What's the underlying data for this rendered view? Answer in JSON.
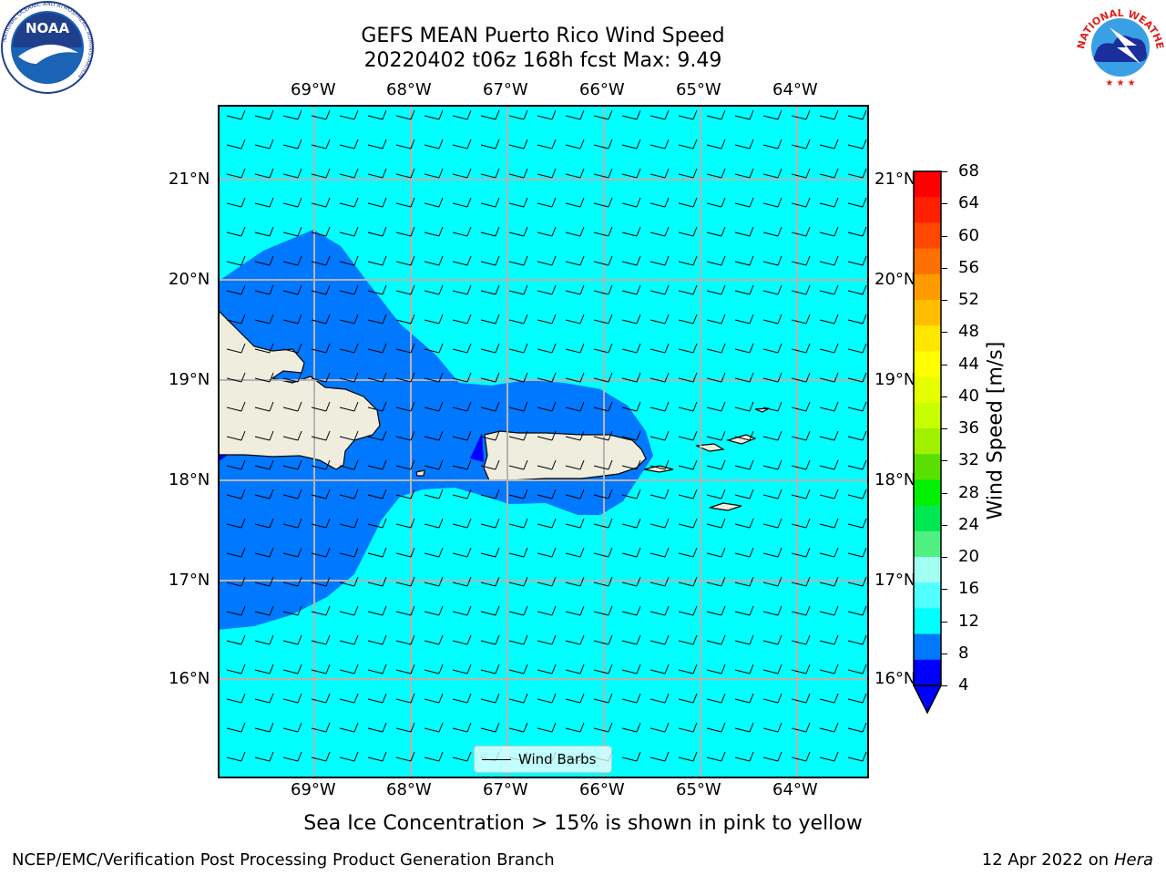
{
  "title": {
    "line1": "GEFS MEAN Puerto Rico Wind Speed",
    "line2": "20220402 t06z 168h fcst   Max: 9.49"
  },
  "map": {
    "lon_range": [
      -70.0,
      -63.25
    ],
    "lat_range": [
      15.0,
      21.75
    ],
    "lon_ticks": [
      {
        "value": -69,
        "label": "69°W"
      },
      {
        "value": -68,
        "label": "68°W"
      },
      {
        "value": -67,
        "label": "67°W"
      },
      {
        "value": -66,
        "label": "66°W"
      },
      {
        "value": -65,
        "label": "65°W"
      },
      {
        "value": -64,
        "label": "64°W"
      }
    ],
    "lat_ticks": [
      {
        "value": 21,
        "label": "21°N"
      },
      {
        "value": 20,
        "label": "20°N"
      },
      {
        "value": 19,
        "label": "19°N"
      },
      {
        "value": 18,
        "label": "18°N"
      },
      {
        "value": 17,
        "label": "17°N"
      },
      {
        "value": 16,
        "label": "16°N"
      }
    ],
    "grid": true,
    "background_color": "#00ffff",
    "land_color": "#efedde",
    "legend_label": "Wind Barbs",
    "wind_barbs": {
      "direction": "east-northeast",
      "speed_class": "5-10 kt"
    }
  },
  "colorbar": {
    "label": "Wind Speed [m/s]",
    "ticks": [
      "68",
      "64",
      "60",
      "56",
      "52",
      "48",
      "44",
      "40",
      "36",
      "32",
      "28",
      "24",
      "20",
      "16",
      "12",
      "8",
      "4"
    ],
    "colors_top_to_bottom": [
      "#ff0000",
      "#ff2000",
      "#ff4800",
      "#ff7000",
      "#ff9a00",
      "#ffbe00",
      "#ffe600",
      "#ffff00",
      "#e6ff00",
      "#c8ff00",
      "#a0f000",
      "#5ae000",
      "#00f000",
      "#00e850",
      "#50f080",
      "#a0fff0",
      "#50ffff",
      "#00ffff",
      "#0078ff",
      "#0000ff"
    ]
  },
  "caption": "Sea Ice Concentration > 15% is shown in pink to yellow",
  "footer": {
    "left": "NCEP/EMC/Verification Post Processing Product Generation Branch",
    "date": "12 Apr 2022 on ",
    "machine": "Hera"
  },
  "logos": {
    "left": "NOAA",
    "left_ring": "NATIONAL OCEANIC AND ATMOSPHERIC ADMINISTRATION",
    "left_bottom": "U.S. DEPARTMENT OF COMMERCE",
    "right_ring": "NATIONAL WEATHER SERVICE"
  }
}
